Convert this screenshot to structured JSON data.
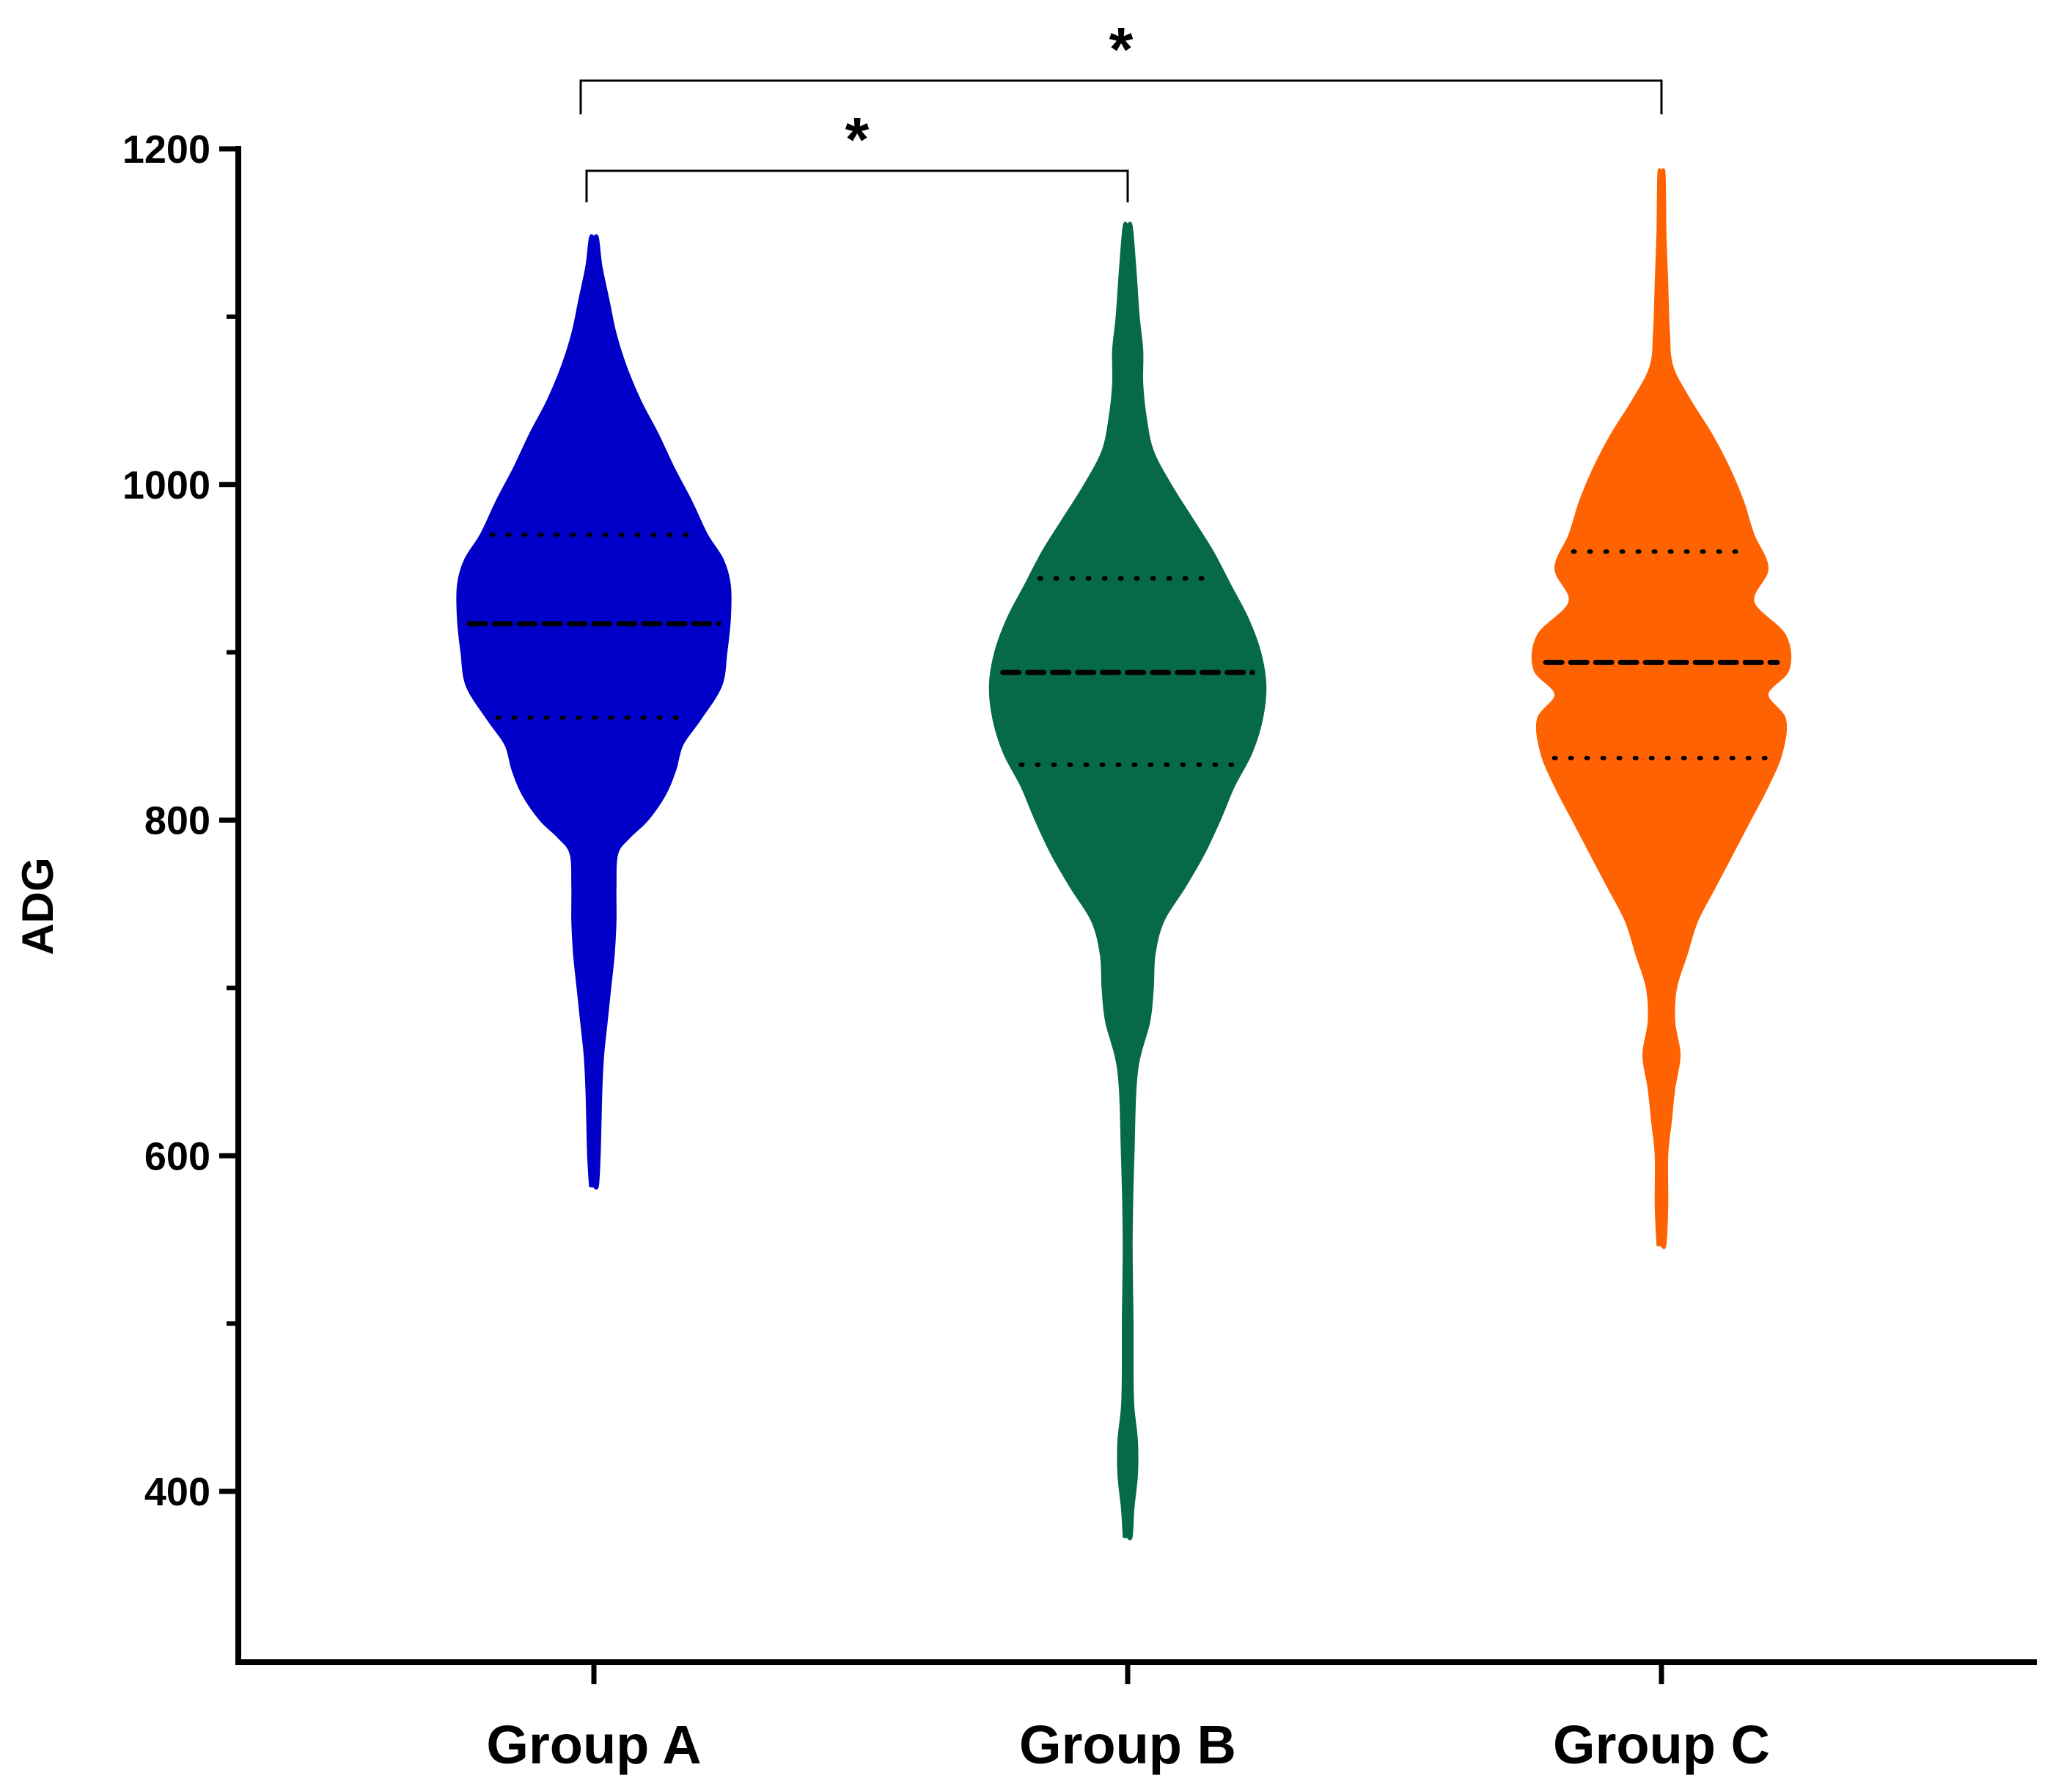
{
  "chart_data": {
    "type": "violin",
    "ylabel": "ADG",
    "ylim": [
      300,
      1200
    ],
    "yticks_major": [
      400,
      600,
      800,
      1000,
      1200
    ],
    "yticks_minor": [
      500,
      700,
      900,
      1100
    ],
    "categories": [
      "Group A",
      "Group B",
      "Group C"
    ],
    "series": [
      {
        "name": "Group A",
        "color": "#0000c8",
        "median": 917,
        "q1": 861,
        "q3": 970,
        "min": 582,
        "max": 1147,
        "density": [
          [
            582,
            0.02
          ],
          [
            600,
            0.03
          ],
          [
            620,
            0.035
          ],
          [
            640,
            0.04
          ],
          [
            660,
            0.05
          ],
          [
            680,
            0.07
          ],
          [
            700,
            0.09
          ],
          [
            720,
            0.11
          ],
          [
            740,
            0.12
          ],
          [
            760,
            0.12
          ],
          [
            780,
            0.13
          ],
          [
            790,
            0.2
          ],
          [
            800,
            0.3
          ],
          [
            815,
            0.4
          ],
          [
            830,
            0.46
          ],
          [
            845,
            0.5
          ],
          [
            860,
            0.6
          ],
          [
            880,
            0.72
          ],
          [
            900,
            0.75
          ],
          [
            920,
            0.77
          ],
          [
            940,
            0.77
          ],
          [
            955,
            0.73
          ],
          [
            970,
            0.64
          ],
          [
            990,
            0.55
          ],
          [
            1010,
            0.45
          ],
          [
            1030,
            0.36
          ],
          [
            1050,
            0.26
          ],
          [
            1070,
            0.18
          ],
          [
            1090,
            0.12
          ],
          [
            1110,
            0.08
          ],
          [
            1130,
            0.04
          ],
          [
            1147,
            0.02
          ]
        ]
      },
      {
        "name": "Group B",
        "color": "#076a46",
        "median": 888,
        "q1": 833,
        "q3": 944,
        "min": 373,
        "max": 1154,
        "density": [
          [
            373,
            0.02
          ],
          [
            390,
            0.03
          ],
          [
            410,
            0.05
          ],
          [
            430,
            0.05
          ],
          [
            450,
            0.03
          ],
          [
            470,
            0.025
          ],
          [
            500,
            0.025
          ],
          [
            550,
            0.02
          ],
          [
            600,
            0.03
          ],
          [
            650,
            0.05
          ],
          [
            680,
            0.12
          ],
          [
            700,
            0.14
          ],
          [
            720,
            0.15
          ],
          [
            740,
            0.2
          ],
          [
            760,
            0.32
          ],
          [
            780,
            0.43
          ],
          [
            800,
            0.52
          ],
          [
            820,
            0.6
          ],
          [
            840,
            0.7
          ],
          [
            860,
            0.76
          ],
          [
            880,
            0.78
          ],
          [
            900,
            0.75
          ],
          [
            920,
            0.68
          ],
          [
            940,
            0.58
          ],
          [
            960,
            0.48
          ],
          [
            980,
            0.36
          ],
          [
            1000,
            0.24
          ],
          [
            1020,
            0.14
          ],
          [
            1040,
            0.1
          ],
          [
            1060,
            0.08
          ],
          [
            1080,
            0.08
          ],
          [
            1100,
            0.06
          ],
          [
            1130,
            0.04
          ],
          [
            1154,
            0.02
          ]
        ]
      },
      {
        "name": "Group C",
        "color": "#ff6200",
        "median": 894,
        "q1": 837,
        "q3": 960,
        "min": 547,
        "max": 1185,
        "density": [
          [
            547,
            0.02
          ],
          [
            570,
            0.03
          ],
          [
            600,
            0.03
          ],
          [
            620,
            0.05
          ],
          [
            640,
            0.07
          ],
          [
            660,
            0.1
          ],
          [
            680,
            0.07
          ],
          [
            700,
            0.08
          ],
          [
            720,
            0.14
          ],
          [
            740,
            0.2
          ],
          [
            760,
            0.3
          ],
          [
            780,
            0.4
          ],
          [
            800,
            0.5
          ],
          [
            820,
            0.6
          ],
          [
            840,
            0.68
          ],
          [
            860,
            0.7
          ],
          [
            875,
            0.6
          ],
          [
            890,
            0.72
          ],
          [
            910,
            0.7
          ],
          [
            930,
            0.52
          ],
          [
            950,
            0.6
          ],
          [
            970,
            0.52
          ],
          [
            990,
            0.46
          ],
          [
            1010,
            0.38
          ],
          [
            1030,
            0.28
          ],
          [
            1050,
            0.16
          ],
          [
            1070,
            0.06
          ],
          [
            1090,
            0.04
          ],
          [
            1120,
            0.03
          ],
          [
            1150,
            0.02
          ],
          [
            1185,
            0.015
          ]
        ]
      }
    ],
    "annotations": [
      {
        "from": "Group A",
        "to": "Group B",
        "label": "*"
      },
      {
        "from": "Group A",
        "to": "Group C",
        "label": "*"
      }
    ]
  }
}
